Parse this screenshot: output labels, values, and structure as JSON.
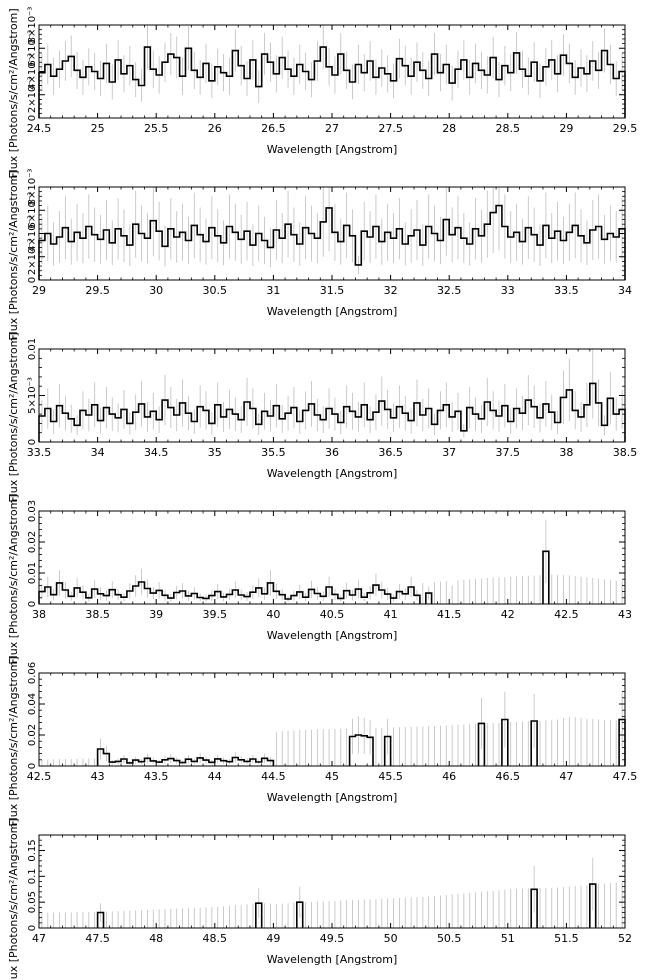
{
  "figure": {
    "ylabel": "Flux [Photons/s/cm²/Angstrom]",
    "xlabel": "Wavelength [Angstrom]"
  },
  "chart_data": [
    {
      "type": "line",
      "step": true,
      "xlabel": "Wavelength [Angstrom]",
      "ylabel": "Flux [Photons/s/cm²/Angstrom]",
      "xlim": [
        24.5,
        29.5
      ],
      "ylim": [
        0,
        0.008
      ],
      "xticks": [
        "24.5",
        "25",
        "25.5",
        "26",
        "26.5",
        "27",
        "27.5",
        "28",
        "28.5",
        "29",
        "29.5"
      ],
      "yticks": [
        "0",
        "2×10⁻³",
        "4×10⁻³",
        "6×10⁻³",
        "8×10⁻³"
      ],
      "bin_width": 0.05,
      "x_start": 24.5,
      "values": [
        0.0039,
        0.0046,
        0.0036,
        0.0042,
        0.0049,
        0.0053,
        0.0041,
        0.0035,
        0.0044,
        0.004,
        0.0034,
        0.0047,
        0.0031,
        0.005,
        0.0038,
        0.0045,
        0.0033,
        0.0028,
        0.0061,
        0.0042,
        0.0037,
        0.0048,
        0.0055,
        0.0052,
        0.0036,
        0.006,
        0.0041,
        0.0035,
        0.0047,
        0.0032,
        0.0044,
        0.0039,
        0.0036,
        0.0058,
        0.0045,
        0.0034,
        0.005,
        0.0027,
        0.0055,
        0.0048,
        0.0038,
        0.0052,
        0.0042,
        0.0036,
        0.0046,
        0.004,
        0.0033,
        0.0049,
        0.0061,
        0.0044,
        0.0037,
        0.0055,
        0.0041,
        0.0031,
        0.0046,
        0.0039,
        0.0049,
        0.0035,
        0.0043,
        0.0038,
        0.0032,
        0.0051,
        0.0045,
        0.0036,
        0.0048,
        0.0041,
        0.0034,
        0.0055,
        0.0039,
        0.0046,
        0.003,
        0.0042,
        0.005,
        0.0035,
        0.0047,
        0.0041,
        0.0037,
        0.0052,
        0.0033,
        0.0045,
        0.0039,
        0.0056,
        0.0042,
        0.0036,
        0.0048,
        0.0032,
        0.0044,
        0.005,
        0.0038,
        0.0054,
        0.0047,
        0.0035,
        0.0043,
        0.0038,
        0.0049,
        0.0041,
        0.0058,
        0.0046,
        0.0034,
        0.004
      ],
      "errors": [
        0.0016,
        0.0017,
        0.0016,
        0.0016,
        0.0017,
        0.0018,
        0.0016,
        0.0015,
        0.0016,
        0.0016,
        0.0015,
        0.0017,
        0.0015,
        0.0017,
        0.0016,
        0.0017,
        0.0015,
        0.0014,
        0.0019,
        0.0016,
        0.0016,
        0.0017,
        0.0018,
        0.0018,
        0.0016,
        0.0019,
        0.0016,
        0.0015,
        0.0017,
        0.0015,
        0.0016,
        0.0016,
        0.0016,
        0.0018,
        0.0017,
        0.0015,
        0.0017,
        0.0014,
        0.0018,
        0.0017,
        0.0016,
        0.0018,
        0.0016,
        0.0016,
        0.0017,
        0.0016,
        0.0015,
        0.0017,
        0.0019,
        0.0016,
        0.0016,
        0.0018,
        0.0016,
        0.0015,
        0.0017,
        0.0016,
        0.0017,
        0.0015,
        0.0016,
        0.0016,
        0.0015,
        0.0017,
        0.0017,
        0.0016,
        0.0017,
        0.0016,
        0.0015,
        0.0018,
        0.0016,
        0.0017,
        0.0015,
        0.0016,
        0.0017,
        0.0015,
        0.0017,
        0.0016,
        0.0016,
        0.0018,
        0.0015,
        0.0017,
        0.0016,
        0.0018,
        0.0016,
        0.0016,
        0.0017,
        0.0015,
        0.0016,
        0.0017,
        0.0016,
        0.0018,
        0.0017,
        0.0015,
        0.0016,
        0.0016,
        0.0017,
        0.0016,
        0.0019,
        0.0017,
        0.0015,
        0.0016
      ]
    },
    {
      "type": "line",
      "step": true,
      "xlabel": "Wavelength [Angstrom]",
      "ylabel": "Flux [Photons/s/cm²/Angstrom]",
      "xlim": [
        29,
        34
      ],
      "ylim": [
        0,
        0.008
      ],
      "xticks": [
        "29",
        "29.5",
        "30",
        "30.5",
        "31",
        "31.5",
        "32",
        "32.5",
        "33",
        "33.5",
        "34"
      ],
      "yticks": [
        "0",
        "2×10⁻³",
        "4×10⁻³",
        "6×10⁻³",
        "8×10⁻³"
      ],
      "bin_width": 0.05,
      "x_start": 29,
      "values": [
        0.0034,
        0.004,
        0.0031,
        0.0037,
        0.0045,
        0.0033,
        0.0041,
        0.0036,
        0.0046,
        0.0039,
        0.0035,
        0.0043,
        0.0032,
        0.0044,
        0.0038,
        0.003,
        0.0048,
        0.004,
        0.0036,
        0.0051,
        0.0042,
        0.0029,
        0.0044,
        0.0037,
        0.0041,
        0.0034,
        0.0047,
        0.0039,
        0.0033,
        0.0045,
        0.0038,
        0.0032,
        0.0046,
        0.0041,
        0.0035,
        0.0042,
        0.003,
        0.004,
        0.0034,
        0.0028,
        0.0043,
        0.0036,
        0.0048,
        0.0039,
        0.0031,
        0.0045,
        0.004,
        0.0036,
        0.005,
        0.0062,
        0.0041,
        0.0033,
        0.0047,
        0.0038,
        0.0013,
        0.0042,
        0.0037,
        0.0046,
        0.0033,
        0.0041,
        0.0036,
        0.0044,
        0.0031,
        0.0038,
        0.0043,
        0.003,
        0.0046,
        0.004,
        0.0034,
        0.0052,
        0.0039,
        0.0045,
        0.0036,
        0.0031,
        0.0044,
        0.0038,
        0.0048,
        0.0058,
        0.0064,
        0.0046,
        0.0037,
        0.0041,
        0.0033,
        0.0045,
        0.0039,
        0.003,
        0.0047,
        0.0036,
        0.0042,
        0.0034,
        0.0041,
        0.0047,
        0.0038,
        0.0032,
        0.0043,
        0.0046,
        0.0035,
        0.004,
        0.0037,
        0.0044
      ]
    },
    {
      "type": "line",
      "step": true,
      "xlabel": "Wavelength [Angstrom]",
      "ylabel": "Flux [Photons/s/cm²/Angstrom]",
      "xlim": [
        33.5,
        38.5
      ],
      "ylim": [
        0,
        0.01
      ],
      "xticks": [
        "33.5",
        "34",
        "34.5",
        "35",
        "35.5",
        "36",
        "36.5",
        "37",
        "37.5",
        "38",
        "38.5"
      ],
      "yticks": [
        "0",
        "5×10⁻³",
        "0.01"
      ],
      "bin_width": 0.05,
      "x_start": 33.5,
      "values": [
        0.0028,
        0.0036,
        0.0022,
        0.0039,
        0.0031,
        0.0025,
        0.0018,
        0.0034,
        0.0029,
        0.004,
        0.0023,
        0.0037,
        0.003,
        0.0026,
        0.0035,
        0.002,
        0.0032,
        0.0041,
        0.0027,
        0.0033,
        0.0024,
        0.0045,
        0.0037,
        0.0029,
        0.0042,
        0.0031,
        0.0022,
        0.0038,
        0.0034,
        0.002,
        0.004,
        0.0027,
        0.0035,
        0.003,
        0.0024,
        0.0043,
        0.0036,
        0.0019,
        0.0033,
        0.0028,
        0.0039,
        0.0025,
        0.0031,
        0.0037,
        0.0022,
        0.0034,
        0.0041,
        0.0029,
        0.0024,
        0.0036,
        0.003,
        0.0021,
        0.0038,
        0.0033,
        0.0027,
        0.004,
        0.0024,
        0.0032,
        0.0044,
        0.0035,
        0.0026,
        0.0038,
        0.0031,
        0.0023,
        0.0042,
        0.0029,
        0.0036,
        0.0019,
        0.0034,
        0.004,
        0.0027,
        0.0033,
        0.0012,
        0.0037,
        0.003,
        0.0025,
        0.0043,
        0.0034,
        0.0028,
        0.0039,
        0.0022,
        0.0036,
        0.0031,
        0.0045,
        0.0038,
        0.0026,
        0.0041,
        0.0032,
        0.0021,
        0.0048,
        0.0056,
        0.0034,
        0.0027,
        0.004,
        0.0063,
        0.0042,
        0.0018,
        0.0047,
        0.003,
        0.0035
      ]
    },
    {
      "type": "line",
      "step": true,
      "xlabel": "Wavelength [Angstrom]",
      "ylabel": "Flux [Photons/s/cm²/Angstrom]",
      "xlim": [
        38,
        43
      ],
      "ylim": [
        0,
        0.03
      ],
      "xticks": [
        "38",
        "38.5",
        "39",
        "39.5",
        "40",
        "40.5",
        "41",
        "41.5",
        "42",
        "42.5",
        "43"
      ],
      "yticks": [
        "0",
        "0.01",
        "0.02",
        "0.03"
      ],
      "bin_width": 0.05,
      "x_start": 38,
      "values": [
        0.004,
        0.0055,
        0.003,
        0.0068,
        0.0045,
        0.0025,
        0.0052,
        0.0038,
        0.002,
        0.0048,
        0.0033,
        0.0027,
        0.0046,
        0.003,
        0.0022,
        0.0042,
        0.0058,
        0.0071,
        0.005,
        0.0035,
        0.0044,
        0.0028,
        0.0019,
        0.0037,
        0.0042,
        0.0026,
        0.0034,
        0.0021,
        0.0018,
        0.0027,
        0.004,
        0.0023,
        0.0031,
        0.0045,
        0.0029,
        0.0024,
        0.0038,
        0.0052,
        0.0033,
        0.0068,
        0.0041,
        0.003,
        0.0016,
        0.0027,
        0.0039,
        0.0022,
        0.0047,
        0.0034,
        0.0025,
        0.0055,
        0.0031,
        0.0018,
        0.0043,
        0.0029,
        0.0048,
        0.0022,
        0.0036,
        0.0061,
        0.0045,
        0.0032,
        0.0019,
        0.004,
        0.0033,
        0.0055,
        0.0028,
        null,
        0.0035,
        null,
        null,
        null,
        null,
        null,
        null,
        null,
        null,
        null,
        null,
        null,
        null,
        null,
        null,
        null,
        null,
        null,
        null,
        null,
        0.017,
        null,
        null,
        null,
        null,
        null,
        null,
        null,
        null,
        null,
        null,
        null,
        null,
        null
      ],
      "upper_limits": [
        null,
        null,
        null,
        null,
        null,
        null,
        null,
        null,
        null,
        null,
        null,
        null,
        null,
        null,
        null,
        null,
        null,
        null,
        null,
        null,
        null,
        null,
        null,
        null,
        null,
        null,
        null,
        null,
        null,
        null,
        null,
        null,
        null,
        null,
        null,
        null,
        null,
        null,
        null,
        null,
        null,
        null,
        null,
        null,
        null,
        null,
        null,
        null,
        null,
        null,
        null,
        null,
        null,
        null,
        null,
        null,
        null,
        null,
        null,
        null,
        null,
        null,
        null,
        null,
        null,
        0.0068,
        null,
        0.007,
        0.0072,
        0.0074,
        0.006,
        0.0076,
        0.0078,
        0.008,
        0.0081,
        0.0082,
        0.0084,
        0.0085,
        0.0086,
        0.0087,
        0.0088,
        0.0089,
        0.009,
        0.0091,
        0.0092,
        0.0093,
        null,
        0.0095,
        0.0094,
        0.0093,
        0.0092,
        0.009,
        0.0088,
        0.0086,
        0.0084,
        0.0082,
        0.008,
        0.0078,
        0.0076,
        0.0074
      ]
    },
    {
      "type": "line",
      "step": true,
      "xlabel": "Wavelength [Angstrom]",
      "ylabel": "Flux [Photons/s/cm²/Angstrom]",
      "xlim": [
        42.5,
        47.5
      ],
      "ylim": [
        0,
        0.06
      ],
      "xticks": [
        "42.5",
        "43",
        "43.5",
        "44",
        "44.5",
        "45",
        "45.5",
        "46",
        "46.5",
        "47",
        "47.5"
      ],
      "yticks": [
        "0",
        "0.02",
        "0.04",
        "0.06"
      ],
      "bin_width": 0.05,
      "x_start": 42.5,
      "values": [
        null,
        null,
        null,
        null,
        null,
        null,
        null,
        null,
        null,
        null,
        0.011,
        0.008,
        0.0025,
        0.003,
        0.0045,
        0.002,
        0.0038,
        0.0028,
        0.005,
        0.0033,
        0.0025,
        0.004,
        0.0048,
        0.0035,
        0.0022,
        0.0044,
        0.003,
        0.0052,
        0.0038,
        0.0024,
        0.0046,
        0.0034,
        0.0028,
        0.0055,
        0.004,
        0.003,
        0.0045,
        0.0026,
        0.005,
        0.0035,
        null,
        null,
        null,
        null,
        null,
        null,
        null,
        null,
        null,
        null,
        null,
        null,
        null,
        0.019,
        0.02,
        0.0195,
        0.0185,
        null,
        null,
        0.019,
        null,
        null,
        null,
        null,
        null,
        null,
        null,
        null,
        null,
        null,
        null,
        null,
        null,
        null,
        null,
        0.0275,
        null,
        null,
        null,
        0.03,
        null,
        null,
        null,
        null,
        0.029,
        null,
        null,
        null,
        null,
        null,
        null,
        null,
        null,
        null,
        null,
        null,
        null,
        null,
        null,
        0.03
      ],
      "upper_limits": [
        0.004,
        0.0042,
        0.0043,
        0.0044,
        0.0045,
        0.0046,
        0.0047,
        0.0048,
        0.0049,
        0.005,
        null,
        null,
        null,
        null,
        null,
        null,
        null,
        null,
        null,
        null,
        null,
        null,
        null,
        null,
        null,
        null,
        null,
        null,
        null,
        null,
        null,
        null,
        null,
        null,
        null,
        null,
        null,
        null,
        null,
        null,
        0.022,
        0.0225,
        0.0228,
        0.023,
        0.0232,
        0.0234,
        0.0235,
        0.0237,
        0.0238,
        0.0239,
        0.024,
        0.0241,
        0.0242,
        null,
        null,
        null,
        null,
        0.0245,
        0.0246,
        null,
        0.0248,
        0.025,
        0.0251,
        0.0252,
        0.0254,
        0.0255,
        0.0256,
        0.0258,
        0.026,
        0.0262,
        0.0264,
        0.0266,
        0.0268,
        0.027,
        0.0272,
        null,
        0.0276,
        0.0278,
        0.028,
        null,
        0.0283,
        0.0285,
        0.0287,
        0.0289,
        null,
        0.0292,
        0.0294,
        0.0296,
        0.03,
        0.031,
        0.0318,
        0.0315,
        0.031,
        0.0306,
        0.0302,
        0.03,
        0.0298,
        0.0296,
        0.0295,
        null
      ]
    },
    {
      "type": "line",
      "step": true,
      "xlabel": "Wavelength [Angstrom]",
      "ylabel": "Flux [Photons/s/cm²/Angstrom]",
      "xlim": [
        47,
        52
      ],
      "ylim": [
        0,
        0.18
      ],
      "xticks": [
        "47",
        "47.5",
        "48",
        "48.5",
        "49",
        "49.5",
        "50",
        "50.5",
        "51",
        "51.5",
        "52"
      ],
      "yticks": [
        "0",
        "0.05",
        "0.1",
        "0.15"
      ],
      "bin_width": 0.05,
      "x_start": 47,
      "values": [
        null,
        null,
        null,
        null,
        null,
        null,
        null,
        null,
        null,
        null,
        0.03,
        null,
        null,
        null,
        null,
        null,
        null,
        null,
        null,
        null,
        null,
        null,
        null,
        null,
        null,
        null,
        null,
        null,
        null,
        null,
        null,
        null,
        null,
        null,
        null,
        null,
        null,
        0.048,
        null,
        null,
        null,
        null,
        null,
        null,
        0.05,
        null,
        null,
        null,
        null,
        null,
        null,
        null,
        null,
        null,
        null,
        null,
        null,
        null,
        null,
        null,
        null,
        null,
        null,
        null,
        null,
        null,
        null,
        null,
        null,
        null,
        null,
        null,
        null,
        null,
        null,
        null,
        null,
        null,
        null,
        null,
        null,
        null,
        null,
        null,
        0.075,
        null,
        null,
        null,
        null,
        null,
        null,
        null,
        null,
        null,
        0.085,
        null,
        null,
        null,
        null,
        null
      ],
      "upper_limits": [
        0.03,
        0.03,
        0.03,
        0.03,
        0.03,
        0.03,
        0.0305,
        0.0305,
        0.031,
        0.031,
        null,
        0.0315,
        0.032,
        0.0325,
        0.033,
        0.0335,
        0.034,
        0.0345,
        0.035,
        0.0355,
        0.036,
        0.0365,
        0.037,
        0.0375,
        0.038,
        0.0385,
        0.039,
        0.0395,
        0.04,
        0.0405,
        0.041,
        0.042,
        0.043,
        0.044,
        0.045,
        0.046,
        0.047,
        null,
        0.048,
        0.047,
        0.046,
        0.047,
        0.048,
        0.049,
        null,
        0.05,
        0.0505,
        0.051,
        0.0515,
        0.052,
        0.0525,
        0.053,
        0.0535,
        0.054,
        0.0545,
        0.055,
        0.0555,
        0.056,
        0.0565,
        0.057,
        0.0575,
        0.058,
        0.0585,
        0.059,
        0.0595,
        0.06,
        0.061,
        0.062,
        0.063,
        0.064,
        0.065,
        0.066,
        0.067,
        0.068,
        0.069,
        0.07,
        0.071,
        0.072,
        0.073,
        0.074,
        0.075,
        0.0755,
        0.076,
        0.0765,
        null,
        0.077,
        0.0775,
        0.078,
        0.0785,
        0.079,
        0.08,
        0.081,
        0.082,
        0.083,
        null,
        0.085,
        0.086,
        0.087,
        0.088,
        0.089
      ]
    }
  ]
}
